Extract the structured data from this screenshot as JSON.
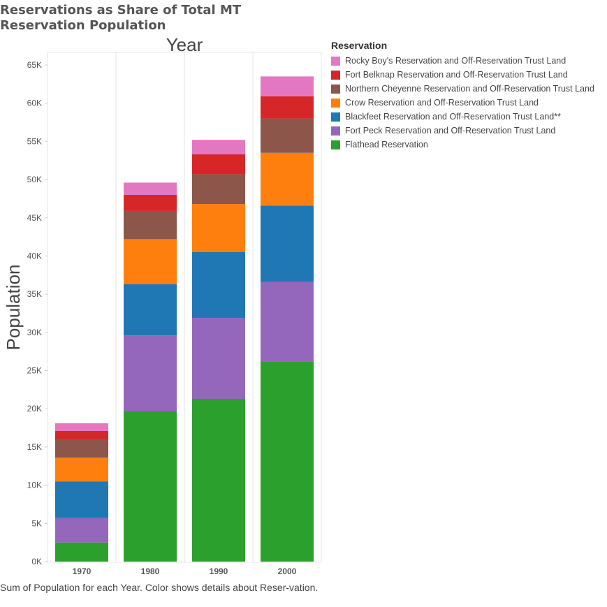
{
  "title": "Reservations as Share of Total MT Reservation Population",
  "caption": "Sum of Population for each Year.  Color shows details about Reser-vation.",
  "chart_data": {
    "type": "bar",
    "stacked": true,
    "title": "Reservations as Share of Total MT Reservation Population",
    "xlabel": "Year",
    "ylabel": "Population",
    "categories": [
      "1970",
      "1980",
      "1990",
      "2000"
    ],
    "ylim": [
      0,
      65000
    ],
    "yticks": [
      0,
      5000,
      10000,
      15000,
      20000,
      25000,
      30000,
      35000,
      40000,
      45000,
      50000,
      55000,
      60000,
      65000
    ],
    "ytick_labels": [
      "0K",
      "5K",
      "10K",
      "15K",
      "20K",
      "25K",
      "30K",
      "35K",
      "40K",
      "45K",
      "50K",
      "55K",
      "60K",
      "65K"
    ],
    "grid": false,
    "legend": {
      "title": "Reservation",
      "position": "right",
      "order": [
        "Rocky Boy's Reservation and Off-Reservation Trust Land",
        "Fort Belknap Reservation and Off-Reservation Trust Land",
        "Northern Cheyenne Reservation and Off-Reservation Trust Land",
        "Crow Reservation and Off-Reservation Trust Land",
        "Blackfeet Reservation and Off-Reservation Trust Land**",
        "Fort Peck Reservation and Off-Reservation Trust Land",
        "Flathead Reservation"
      ]
    },
    "series": [
      {
        "name": "Flathead Reservation",
        "color": "#2ca02c",
        "values": [
          2500,
          19700,
          21300,
          26200
        ]
      },
      {
        "name": "Fort Peck Reservation and Off-Reservation Trust Land",
        "color": "#9467bd",
        "values": [
          3200,
          9900,
          10600,
          10400
        ]
      },
      {
        "name": "Blackfeet Reservation and Off-Reservation Trust Land**",
        "color": "#1f77b4",
        "values": [
          4800,
          6700,
          8600,
          10000
        ]
      },
      {
        "name": "Crow Reservation and Off-Reservation Trust Land",
        "color": "#ff7f0e",
        "values": [
          3100,
          5900,
          6300,
          6900
        ]
      },
      {
        "name": "Northern Cheyenne Reservation and Off-Reservation Trust Land",
        "color": "#8c564b",
        "values": [
          2400,
          3700,
          3900,
          4500
        ]
      },
      {
        "name": "Fort Belknap Reservation and Off-Reservation Trust Land",
        "color": "#d62728",
        "values": [
          1100,
          2100,
          2600,
          2900
        ]
      },
      {
        "name": "Rocky Boy's Reservation and Off-Reservation Trust Land",
        "color": "#e377c2",
        "values": [
          1000,
          1600,
          1900,
          2600
        ]
      }
    ]
  }
}
